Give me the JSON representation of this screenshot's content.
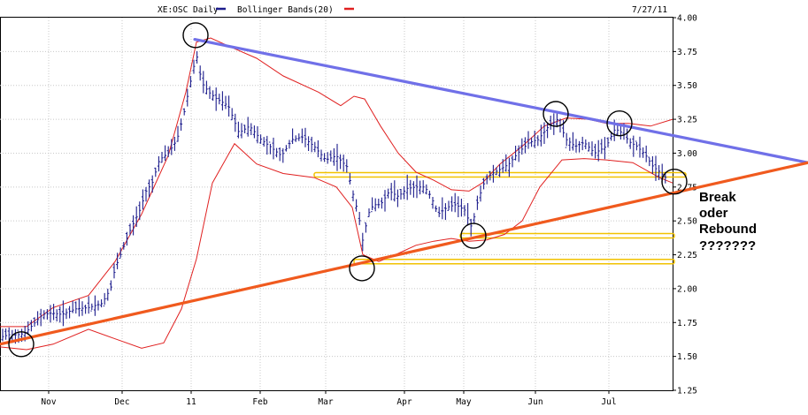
{
  "chart_data": {
    "type": "line",
    "title": "XE:OSC Daily",
    "date_label": "7/27/11",
    "legend": [
      {
        "name": "XE:OSC Daily",
        "color": "#1c1c8c"
      },
      {
        "name": "Bollinger Bands(20)",
        "color": "#e02020"
      }
    ],
    "x_ticks": [
      "Nov",
      "Dec",
      "11",
      "Feb",
      "Mar",
      "Apr",
      "May",
      "Jun",
      "Jul"
    ],
    "y_ticks": [
      "4.00",
      "3.75",
      "3.50",
      "3.25",
      "3.00",
      "2.75",
      "2.50",
      "2.25",
      "2.00",
      "1.75",
      "1.50",
      "1.25"
    ],
    "ylim": [
      1.25,
      4.0
    ],
    "grid": true,
    "price_path": [
      [
        0,
        1.64
      ],
      [
        10,
        1.66
      ],
      [
        20,
        1.66
      ],
      [
        28,
        1.67
      ],
      [
        38,
        1.74
      ],
      [
        48,
        1.81
      ],
      [
        58,
        1.82
      ],
      [
        70,
        1.81
      ],
      [
        85,
        1.85
      ],
      [
        100,
        1.86
      ],
      [
        115,
        1.89
      ],
      [
        125,
        2.0
      ],
      [
        130,
        2.15
      ],
      [
        138,
        2.28
      ],
      [
        145,
        2.4
      ],
      [
        152,
        2.5
      ],
      [
        158,
        2.58
      ],
      [
        165,
        2.72
      ],
      [
        172,
        2.78
      ],
      [
        180,
        2.95
      ],
      [
        190,
        3.0
      ],
      [
        200,
        3.1
      ],
      [
        208,
        3.3
      ],
      [
        216,
        3.55
      ],
      [
        222,
        3.73
      ],
      [
        228,
        3.52
      ],
      [
        236,
        3.45
      ],
      [
        245,
        3.4
      ],
      [
        258,
        3.35
      ],
      [
        270,
        3.15
      ],
      [
        282,
        3.2
      ],
      [
        295,
        3.1
      ],
      [
        305,
        3.05
      ],
      [
        318,
        2.98
      ],
      [
        330,
        3.1
      ],
      [
        342,
        3.12
      ],
      [
        355,
        3.05
      ],
      [
        368,
        2.95
      ],
      [
        380,
        2.98
      ],
      [
        392,
        2.9
      ],
      [
        398,
        2.72
      ],
      [
        405,
        2.55
      ],
      [
        410,
        2.35
      ],
      [
        416,
        2.55
      ],
      [
        422,
        2.62
      ],
      [
        430,
        2.62
      ],
      [
        440,
        2.72
      ],
      [
        450,
        2.68
      ],
      [
        460,
        2.74
      ],
      [
        470,
        2.75
      ],
      [
        480,
        2.75
      ],
      [
        487,
        2.68
      ],
      [
        495,
        2.55
      ],
      [
        505,
        2.6
      ],
      [
        515,
        2.62
      ],
      [
        525,
        2.58
      ],
      [
        533,
        2.45
      ],
      [
        540,
        2.65
      ],
      [
        548,
        2.8
      ],
      [
        556,
        2.85
      ],
      [
        565,
        2.88
      ],
      [
        575,
        2.92
      ],
      [
        585,
        3.0
      ],
      [
        598,
        3.08
      ],
      [
        608,
        3.1
      ],
      [
        620,
        3.2
      ],
      [
        630,
        3.25
      ],
      [
        640,
        3.1
      ],
      [
        650,
        3.05
      ],
      [
        660,
        3.08
      ],
      [
        672,
        3.0
      ],
      [
        685,
        3.05
      ],
      [
        695,
        3.18
      ],
      [
        703,
        3.15
      ],
      [
        712,
        3.08
      ],
      [
        720,
        3.05
      ],
      [
        730,
        2.98
      ],
      [
        738,
        2.9
      ],
      [
        746,
        2.86
      ],
      [
        752,
        2.82
      ]
    ],
    "upper_band": [
      [
        0,
        1.72
      ],
      [
        30,
        1.72
      ],
      [
        60,
        1.86
      ],
      [
        100,
        1.95
      ],
      [
        130,
        2.2
      ],
      [
        160,
        2.55
      ],
      [
        190,
        2.98
      ],
      [
        210,
        3.45
      ],
      [
        222,
        3.82
      ],
      [
        238,
        3.85
      ],
      [
        262,
        3.78
      ],
      [
        290,
        3.7
      ],
      [
        320,
        3.57
      ],
      [
        360,
        3.45
      ],
      [
        385,
        3.35
      ],
      [
        400,
        3.42
      ],
      [
        412,
        3.4
      ],
      [
        430,
        3.2
      ],
      [
        450,
        3.0
      ],
      [
        470,
        2.86
      ],
      [
        490,
        2.8
      ],
      [
        510,
        2.73
      ],
      [
        530,
        2.72
      ],
      [
        545,
        2.78
      ],
      [
        565,
        2.92
      ],
      [
        590,
        3.05
      ],
      [
        615,
        3.2
      ],
      [
        640,
        3.26
      ],
      [
        665,
        3.25
      ],
      [
        685,
        3.22
      ],
      [
        710,
        3.22
      ],
      [
        735,
        3.2
      ],
      [
        760,
        3.25
      ]
    ],
    "lower_band": [
      [
        0,
        1.57
      ],
      [
        30,
        1.55
      ],
      [
        60,
        1.59
      ],
      [
        100,
        1.7
      ],
      [
        130,
        1.63
      ],
      [
        160,
        1.56
      ],
      [
        185,
        1.6
      ],
      [
        205,
        1.85
      ],
      [
        222,
        2.22
      ],
      [
        240,
        2.78
      ],
      [
        265,
        3.07
      ],
      [
        290,
        2.92
      ],
      [
        320,
        2.85
      ],
      [
        355,
        2.82
      ],
      [
        380,
        2.75
      ],
      [
        398,
        2.6
      ],
      [
        410,
        2.25
      ],
      [
        428,
        2.2
      ],
      [
        450,
        2.26
      ],
      [
        470,
        2.32
      ],
      [
        490,
        2.35
      ],
      [
        510,
        2.37
      ],
      [
        530,
        2.35
      ],
      [
        550,
        2.36
      ],
      [
        570,
        2.4
      ],
      [
        590,
        2.5
      ],
      [
        610,
        2.75
      ],
      [
        635,
        2.95
      ],
      [
        660,
        2.96
      ],
      [
        685,
        2.95
      ],
      [
        715,
        2.93
      ],
      [
        745,
        2.82
      ],
      [
        760,
        2.78
      ]
    ],
    "trendlines": [
      {
        "kind": "descending resistance",
        "color": "#7070e8",
        "points": [
          [
            220,
            3.84
          ],
          [
            913,
            2.93
          ]
        ]
      },
      {
        "kind": "ascending support",
        "color": "#f05a1e",
        "points": [
          [
            0,
            1.59
          ],
          [
            913,
            2.93
          ]
        ]
      }
    ],
    "support_levels": [
      2.84,
      2.39,
      2.2
    ],
    "circled_points": [
      [
        221,
        3.87
      ],
      [
        628,
        3.29
      ],
      [
        700,
        3.22
      ],
      [
        762,
        2.79
      ],
      [
        24,
        1.59
      ],
      [
        409,
        2.15
      ],
      [
        535,
        2.39
      ]
    ],
    "annotation": [
      "Break",
      "oder",
      "Rebound",
      "???????"
    ]
  }
}
